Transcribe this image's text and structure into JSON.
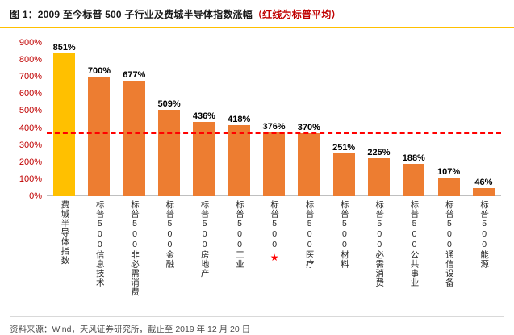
{
  "title": {
    "main": "图 1：2009 至今标普 500 子行业及费城半导体指数涨幅",
    "note": "（红线为标普平均）"
  },
  "source": "资料来源：Wind，天风证券研究所，截止至 2019 年 12 月 20 日",
  "colors": {
    "bar": "#ED7D31",
    "bar_highlight": "#FFC000",
    "avg_line": "#FF0000",
    "axis_tick": "#C00000",
    "value_label": "#000000",
    "accent_rule": "#FFC000"
  },
  "chart_data": {
    "type": "bar",
    "title": "2009 至今标普 500 子行业及费城半导体指数涨幅（红线为标普平均）",
    "categories": [
      "费城半导体指数",
      "标普500信息技术",
      "标普500非必需消费",
      "标普500金融",
      "标普500房地产",
      "标普500工业",
      "标普500",
      "标普500医疗",
      "标普500材料",
      "标普500必需消费",
      "标普500公共事业",
      "标普500通信设备",
      "标普500能源"
    ],
    "values": [
      851,
      700,
      677,
      509,
      436,
      418,
      376,
      370,
      251,
      225,
      188,
      107,
      46
    ],
    "value_suffix": "%",
    "highlight_index": 0,
    "starred_index": 6,
    "star_glyph": "★",
    "avg_line_value": 376,
    "ylim": [
      0,
      900
    ],
    "ytick_labels": [
      "900%",
      "800%",
      "700%",
      "600%",
      "500%",
      "400%",
      "300%",
      "200%",
      "100%",
      "0%"
    ],
    "grid": false,
    "legend": false,
    "xlabel": "",
    "ylabel": ""
  }
}
